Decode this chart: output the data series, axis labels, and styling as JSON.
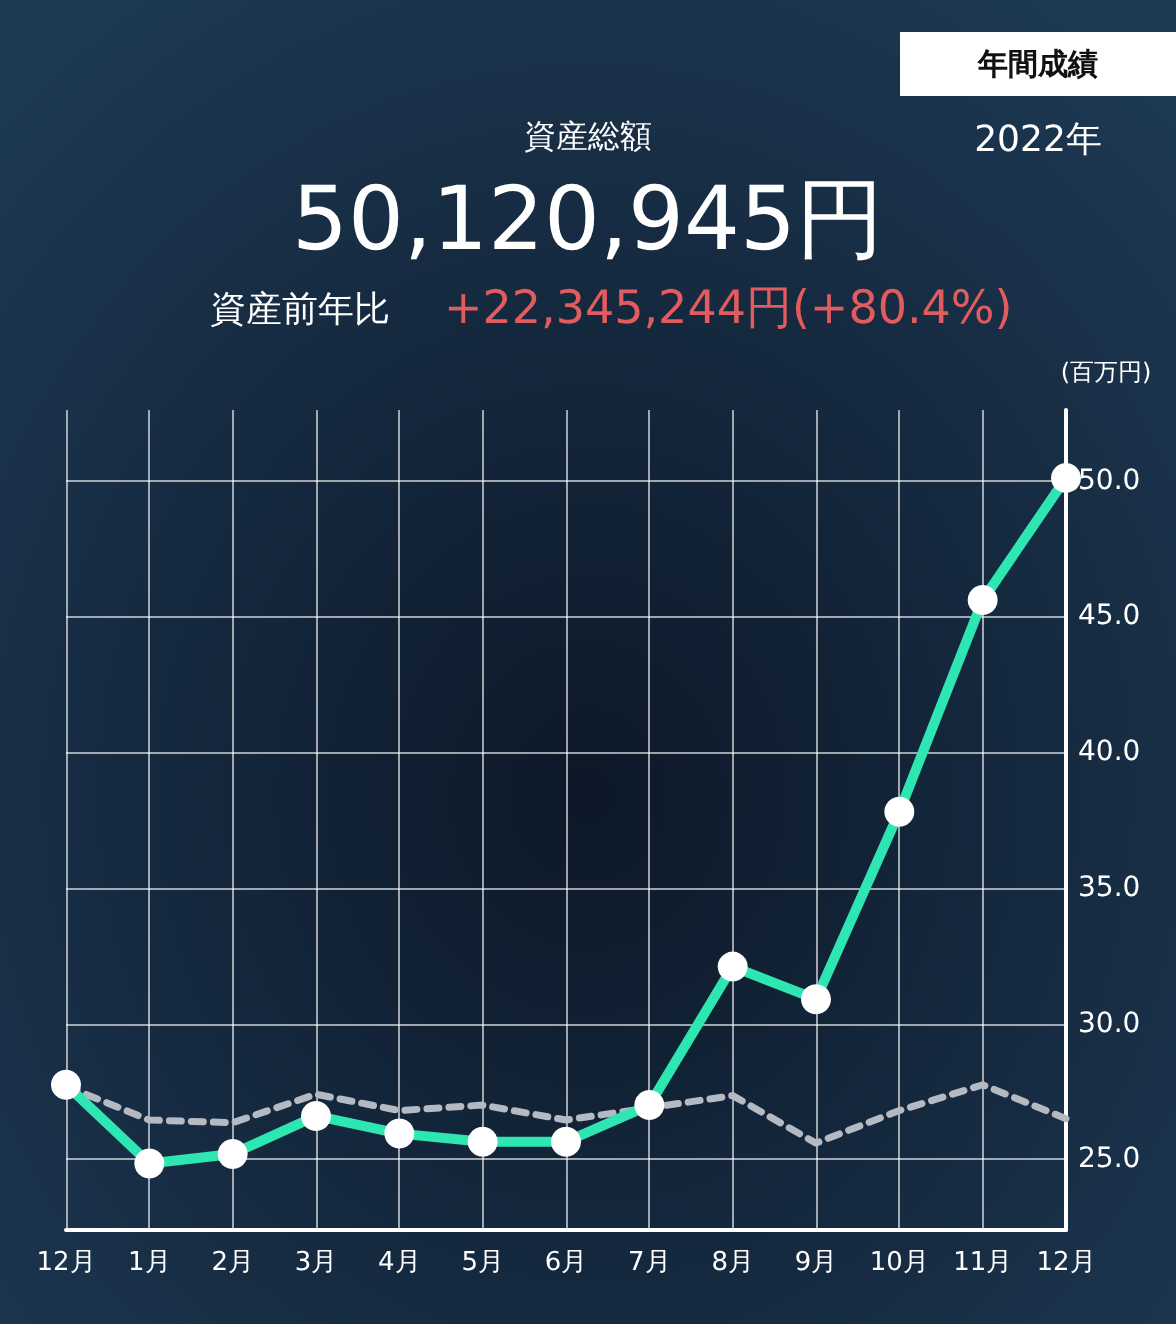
{
  "chart_data": {
    "type": "line",
    "title": "年間成績",
    "subtitle": "2022年",
    "ylabel": "(百万円)",
    "annotations": [
      "資産総額",
      "50,120,945円",
      "資産前年比",
      "+22,345,244円(+80.4%)"
    ],
    "categories": [
      "12月",
      "1月",
      "2月",
      "3月",
      "4月",
      "5月",
      "6月",
      "7月",
      "8月",
      "9月",
      "10月",
      "11月",
      "12月"
    ],
    "series": [
      {
        "color": "#b4b9c2",
        "line_style": "dashed",
        "marker": "none",
        "values": [
          27.7,
          26.45,
          26.35,
          27.4,
          26.8,
          27.0,
          26.45,
          26.9,
          27.35,
          25.6,
          26.8,
          27.75,
          26.5
        ]
      },
      {
        "color": "#2ee6b2",
        "line_style": "solid",
        "marker": "circle",
        "values": [
          27.75,
          24.85,
          25.2,
          26.6,
          25.95,
          25.65,
          25.65,
          27.0,
          32.1,
          30.9,
          37.8,
          45.6,
          50.1
        ]
      }
    ],
    "ylim": [
      22.4,
      52.6
    ],
    "yticks": [
      {
        "value": 25,
        "label": "25.0"
      },
      {
        "value": 30,
        "label": "30.0"
      },
      {
        "value": 35,
        "label": "35.0"
      },
      {
        "value": 40,
        "label": "40.0"
      },
      {
        "value": 45,
        "label": "45.0"
      },
      {
        "value": 50,
        "label": "50.0"
      }
    ],
    "grid": true
  }
}
